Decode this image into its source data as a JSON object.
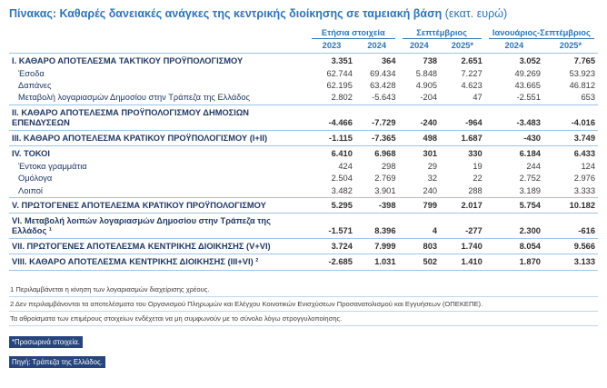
{
  "title": {
    "main": "Πίνακας: Καθαρές δανειακές ανάγκες της κεντρικής διοίκησης σε ταμειακή βάση",
    "unit": "(εκατ. ευρώ)"
  },
  "table": {
    "col_groups": [
      {
        "label": "Ετήσια στοιχεία",
        "cols": [
          "2023",
          "2024"
        ]
      },
      {
        "label": "Σεπτέμβριος",
        "cols": [
          "2024",
          "2025*"
        ]
      },
      {
        "label": "Ιανουάριος-Σεπτέμβριος",
        "cols": [
          "2024",
          "2025*"
        ]
      }
    ],
    "rows": [
      {
        "label": "Ι. ΚΑΘΑΡΟ ΑΠΟΤΕΛΕΣΜΑ  ΤΑΚΤΙΚΟΥ ΠΡΟΫΠΟΛΟΓΙΣΜΟΥ",
        "bold": true,
        "sep": true,
        "values": [
          "3.351",
          "364",
          "738",
          "2.651",
          "3.052",
          "7.765"
        ]
      },
      {
        "label": "Έσοδα",
        "indent": true,
        "values": [
          "62.744",
          "69.434",
          "5.848",
          "7.227",
          "49.269",
          "53.923"
        ]
      },
      {
        "label": "Δαπάνες",
        "indent": true,
        "values": [
          "62.195",
          "63.428",
          "4.905",
          "4.623",
          "43.665",
          "46.812"
        ]
      },
      {
        "label": "Μεταβολή λογαριασμών Δημοσίου στην Τράπεζα της Ελλάδος",
        "indent": true,
        "values": [
          "2.802",
          "-5.643",
          "-204",
          "47",
          "-2.551",
          "653"
        ]
      },
      {
        "label": "ΙΙ. ΚΑΘΑΡΟ ΑΠΟΤΕΛΕΣΜΑ ΠΡΟΫΠΟΛΟΓΙΣΜΟΥ ΔΗΜΟΣΙΩΝ ΕΠΕΝΔΥΣΕΩΝ",
        "bold": true,
        "sep": true,
        "values": [
          "-4.466",
          "-7.729",
          "-240",
          "-964",
          "-3.483",
          "-4.016"
        ]
      },
      {
        "label": "ΙΙΙ. ΚΑΘΑΡΟ ΑΠΟΤΕΛΕΣΜΑ ΚΡΑΤΙΚΟΥ ΠΡΟΫΠΟΛΟΓΙΣΜΟΥ (Ι+ΙΙ)",
        "bold": true,
        "sep": true,
        "values": [
          "-1.115",
          "-7.365",
          "498",
          "1.687",
          "-430",
          "3.749"
        ]
      },
      {
        "label": "IV. ΤΟΚΟΙ",
        "bold": true,
        "sep": true,
        "values": [
          "6.410",
          "6.968",
          "301",
          "330",
          "6.184",
          "6.433"
        ]
      },
      {
        "label": "Έντοκα γραμμάτια",
        "indent": true,
        "values": [
          "424",
          "298",
          "29",
          "19",
          "244",
          "124"
        ]
      },
      {
        "label": "Ομόλογα",
        "indent": true,
        "values": [
          "2.504",
          "2.769",
          "32",
          "22",
          "2.752",
          "2.976"
        ]
      },
      {
        "label": "Λοιποί",
        "indent": true,
        "values": [
          "3.482",
          "3.901",
          "240",
          "288",
          "3.189",
          "3.333"
        ]
      },
      {
        "label": "V. ΠΡΩΤΟΓΕΝΕΣ ΑΠΟΤΕΛΕΣΜΑ  ΚΡΑΤΙΚΟΥ ΠΡΟΫΠΟΛΟΓΙΣΜΟΥ",
        "bold": true,
        "sep": true,
        "values": [
          "5.295",
          "-398",
          "799",
          "2.017",
          "5.754",
          "10.182"
        ]
      },
      {
        "label": "VI. Μεταβολή λοιπών λογαριασμών Δημοσίου στην Τράπεζα της Ελλάδος ¹",
        "bold": true,
        "sep": true,
        "values": [
          "-1.571",
          "8.396",
          "4",
          "-277",
          "2.300",
          "-616"
        ]
      },
      {
        "label": "VII. ΠΡΩΤΟΓΕΝΕΣ ΑΠΟΤΕΛΕΣΜΑ ΚΕΝΤΡΙΚΗΣ ΔΙΟΙΚΗΣΗΣ (V+VI)",
        "bold": true,
        "sep": true,
        "values": [
          "3.724",
          "7.999",
          "803",
          "1.740",
          "8.054",
          "9.566"
        ]
      },
      {
        "label": "VIII. ΚΑΘΑΡΟ ΑΠΟΤΕΛΕΣΜΑ ΚΕΝΤΡΙΚΗΣ ΔΙΟΙΚΗΣΗΣ (ΙΙΙ+VI) ²",
        "bold": true,
        "sep": true,
        "values": [
          "-2.685",
          "1.031",
          "502",
          "1.410",
          "1.870",
          "3.133"
        ]
      }
    ]
  },
  "footnotes": [
    "1 Περιλαμβάνεται η κίνηση των λογαριασμών διαχείρισης χρέους.",
    "2 Δεν περιλαμβάνονται τα αποτελέσματα του Οργανισμού Πληρωμών και Ελέγχου Κοινοτικών Ενισχύσεων Προσανατολισμού και Εγγυήσεων (ΟΠΕΚΕΠΕ).",
    "Τα αθροίσματα των επιμέρους στοιχείων ενδέχεται να μη συμφωνούν με το σύνολο λόγω στρογγυλοποίησης."
  ],
  "highlighted_notes": [
    "*Προσωρινά στοιχεία.",
    "Πηγή: Τράπεζα της Ελλάδος."
  ],
  "colors": {
    "title_blue": "#2e75b6",
    "label_navy": "#1f3864",
    "line_blue": "#9dc3e6",
    "highlight_bg": "#27457c",
    "highlight_text": "#ffffff"
  }
}
